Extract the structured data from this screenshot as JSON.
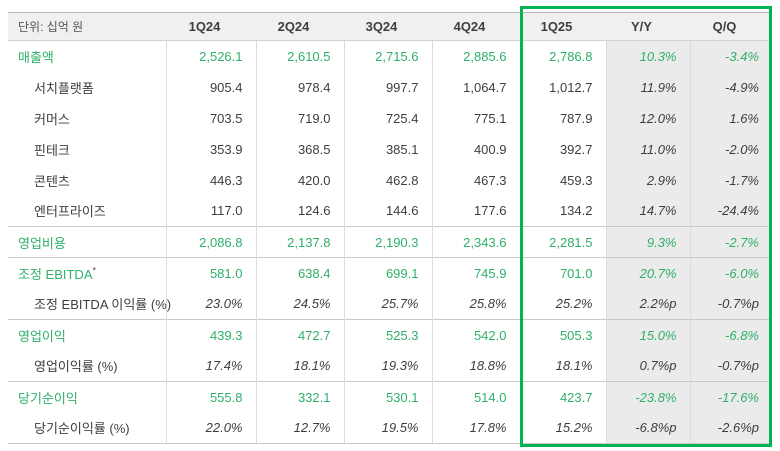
{
  "unit_label": "단위: 십억 원",
  "columns": [
    "1Q24",
    "2Q24",
    "3Q24",
    "4Q24",
    "1Q25",
    "Y/Y",
    "Q/Q"
  ],
  "highlighted_columns": [
    "1Q25",
    "Y/Y",
    "Q/Q"
  ],
  "colors": {
    "green_text": "#2fb06a",
    "green_border": "#04b452",
    "header_bg": "#f0f0f0",
    "shade_bg": "#ebebeb",
    "text_dark": "#3e3e3e"
  },
  "rows": [
    {
      "label": "매출액",
      "style": "primary",
      "indent": false,
      "sup": "",
      "values": [
        "2,526.1",
        "2,610.5",
        "2,715.6",
        "2,885.6",
        "2,786.8",
        "10.3%",
        "-3.4%"
      ]
    },
    {
      "label": "서치플랫폼",
      "style": "sub",
      "indent": true,
      "sup": "",
      "values": [
        "905.4",
        "978.4",
        "997.7",
        "1,064.7",
        "1,012.7",
        "11.9%",
        "-4.9%"
      ]
    },
    {
      "label": "커머스",
      "style": "sub",
      "indent": true,
      "sup": "",
      "values": [
        "703.5",
        "719.0",
        "725.4",
        "775.1",
        "787.9",
        "12.0%",
        "1.6%"
      ]
    },
    {
      "label": "핀테크",
      "style": "sub",
      "indent": true,
      "sup": "",
      "values": [
        "353.9",
        "368.5",
        "385.1",
        "400.9",
        "392.7",
        "11.0%",
        "-2.0%"
      ]
    },
    {
      "label": "콘텐츠",
      "style": "sub",
      "indent": true,
      "sup": "",
      "values": [
        "446.3",
        "420.0",
        "462.8",
        "467.3",
        "459.3",
        "2.9%",
        "-1.7%"
      ]
    },
    {
      "label": "엔터프라이즈",
      "style": "sub",
      "indent": true,
      "sup": "",
      "values": [
        "117.0",
        "124.6",
        "144.6",
        "177.6",
        "134.2",
        "14.7%",
        "-24.4%"
      ]
    },
    {
      "label": "영업비용",
      "style": "primary",
      "indent": false,
      "sup": "",
      "section": true,
      "values": [
        "2,086.8",
        "2,137.8",
        "2,190.3",
        "2,343.6",
        "2,281.5",
        "9.3%",
        "-2.7%"
      ]
    },
    {
      "label": "조정 EBITDA",
      "style": "primary",
      "indent": false,
      "sup": "*",
      "section": true,
      "values": [
        "581.0",
        "638.4",
        "699.1",
        "745.9",
        "701.0",
        "20.7%",
        "-6.0%"
      ]
    },
    {
      "label": "조정 EBITDA 이익률 (%)",
      "style": "ratio",
      "indent": true,
      "sup": "",
      "values": [
        "23.0%",
        "24.5%",
        "25.7%",
        "25.8%",
        "25.2%",
        "2.2%p",
        "-0.7%p"
      ]
    },
    {
      "label": "영업이익",
      "style": "primary",
      "indent": false,
      "sup": "",
      "section": true,
      "values": [
        "439.3",
        "472.7",
        "525.3",
        "542.0",
        "505.3",
        "15.0%",
        "-6.8%"
      ]
    },
    {
      "label": "영업이익률 (%)",
      "style": "ratio",
      "indent": true,
      "sup": "",
      "values": [
        "17.4%",
        "18.1%",
        "19.3%",
        "18.8%",
        "18.1%",
        "0.7%p",
        "-0.7%p"
      ]
    },
    {
      "label": "당기순이익",
      "style": "primary",
      "indent": false,
      "sup": "",
      "section": true,
      "values": [
        "555.8",
        "332.1",
        "530.1",
        "514.0",
        "423.7",
        "-23.8%",
        "-17.6%"
      ]
    },
    {
      "label": "당기순이익률 (%)",
      "style": "ratio",
      "indent": true,
      "sup": "",
      "values": [
        "22.0%",
        "12.7%",
        "19.5%",
        "17.8%",
        "15.2%",
        "-6.8%p",
        "-2.6%p"
      ]
    }
  ]
}
